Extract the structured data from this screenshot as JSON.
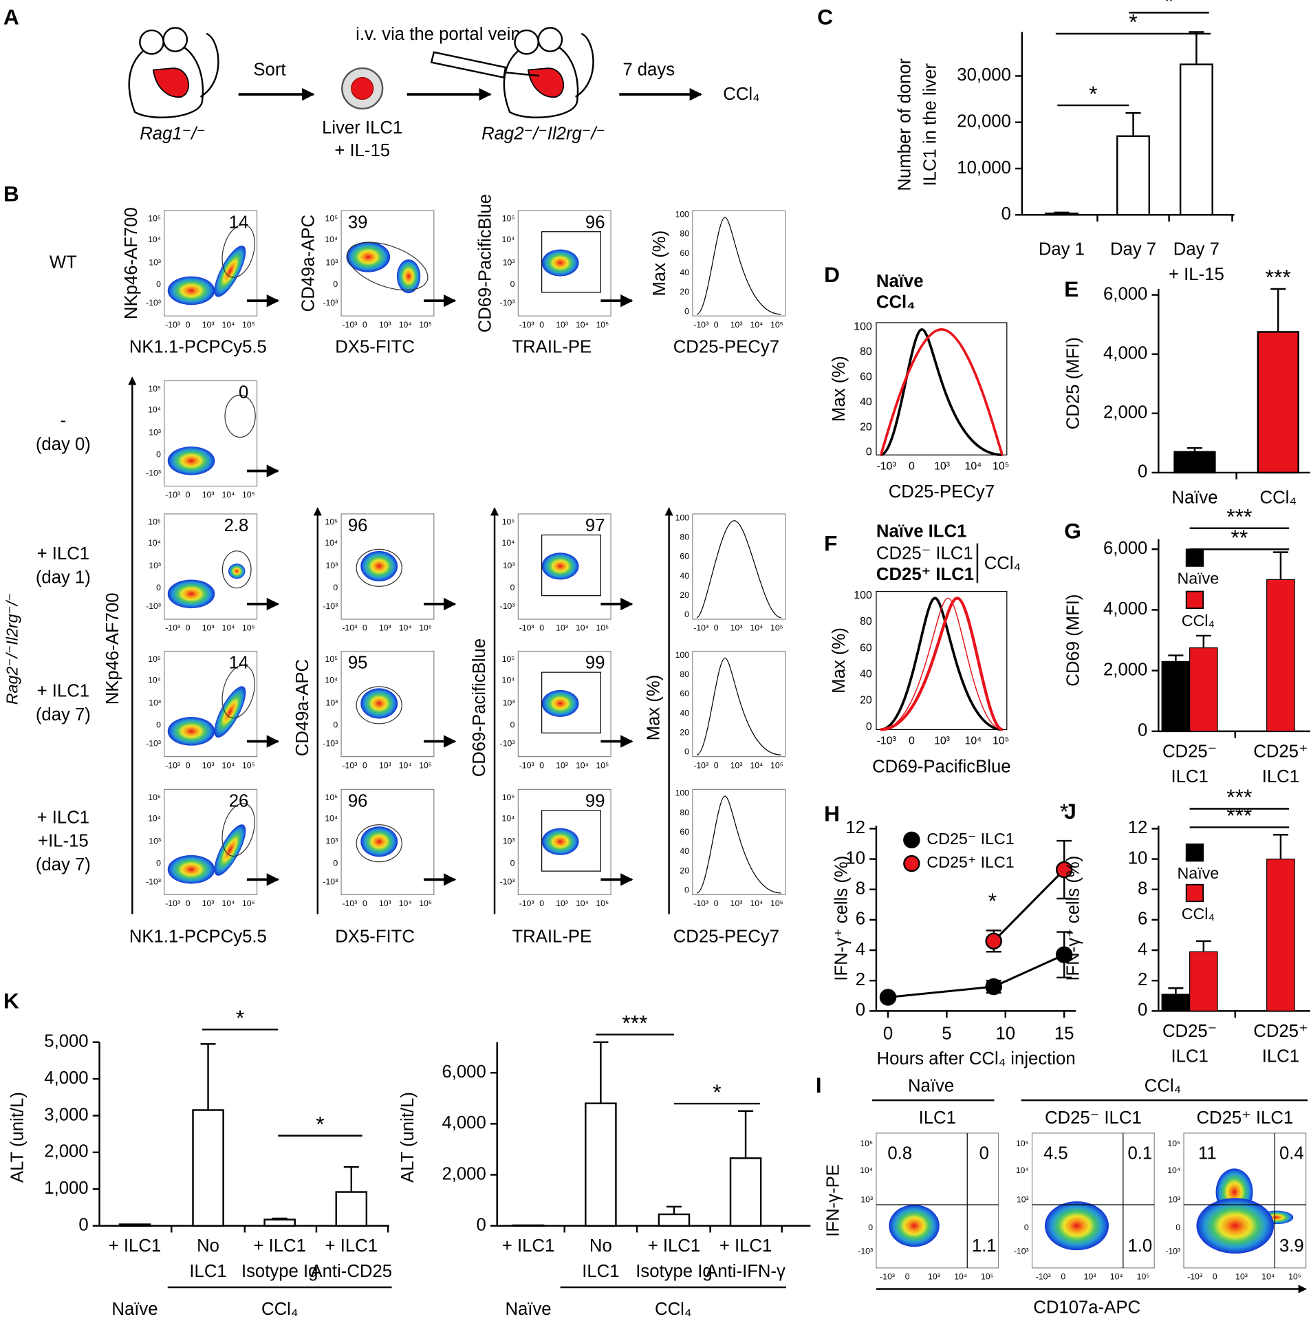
{
  "schematic": {
    "panel": "A",
    "donor": "Rag1⁻/⁻",
    "sort": "Sort",
    "cells": [
      "Liver ILC1",
      "+ IL-15"
    ],
    "route": "i.v. via the portal vein",
    "recipient": "Rag2⁻/⁻Il2rg⁻/⁻",
    "time": "7 days",
    "treatment": "CCl₄"
  },
  "flow_b": {
    "panel": "B",
    "group": "Rag2⁻/⁻Il2rg⁻/⁻",
    "y_labels": [
      "NKp46-AF700",
      "CD49a-APC",
      "CD69-PacificBlue",
      "Max (%)"
    ],
    "x_labels": [
      "NK1.1-PCPCy5.5",
      "DX5-FITC",
      "TRAIL-PE",
      "CD25-PECy7"
    ],
    "rows": [
      {
        "label": [
          "WT"
        ],
        "gates": [
          "14",
          "39",
          "96"
        ]
      },
      {
        "label": [
          "-",
          "(day 0)"
        ],
        "gates": [
          "0"
        ]
      },
      {
        "label": [
          "+ ILC1",
          "(day 1)"
        ],
        "gates": [
          "2.8",
          "96",
          "97"
        ]
      },
      {
        "label": [
          "+ ILC1",
          "(day 7)"
        ],
        "gates": [
          "14",
          "95",
          "99"
        ]
      },
      {
        "label": [
          "+ ILC1",
          "+IL-15",
          "(day 7)"
        ],
        "gates": [
          "26",
          "96",
          "99"
        ]
      }
    ],
    "log_ticks_y": [
      "10⁵",
      "10⁴",
      "10³",
      "0",
      "-10³"
    ],
    "log_ticks_x": [
      "-10³",
      "0",
      "10³",
      "10⁴",
      "10⁵"
    ],
    "max_ticks": [
      "100",
      "80",
      "60",
      "40",
      "20",
      "0"
    ]
  },
  "hist_d": {
    "panel": "D",
    "legend": [
      "Naïve",
      "CCl₄"
    ],
    "xlabel": "CD25-PECy7",
    "ylabel": "Max (%)"
  },
  "hist_f": {
    "panel": "F",
    "legend": [
      "Naïve ILC1",
      "CD25⁻ ILC1",
      "CD25⁺ ILC1"
    ],
    "bracket": "CCl₄",
    "xlabel": "CD69-PacificBlue",
    "ylabel": "Max (%)"
  },
  "flow_i": {
    "panel": "I",
    "groups": [
      "Naïve",
      "CCl₄"
    ],
    "titles": [
      "ILC1",
      "CD25⁻ ILC1",
      "CD25⁺ ILC1"
    ],
    "quadrants": [
      [
        "0.8",
        "0",
        "1.1"
      ],
      [
        "4.5",
        "0.1",
        "1.0"
      ],
      [
        "11",
        "0.4",
        "3.9"
      ]
    ],
    "ylabel": "IFN-γ-PE",
    "xlabel": "CD107a-APC"
  },
  "chart_data": [
    {
      "type": "bar",
      "panel": "C",
      "ylabel": [
        "Number of donor",
        "ILC1 in the liver"
      ],
      "categories": [
        [
          "Day 1"
        ],
        [
          "Day 7"
        ],
        [
          "Day 7",
          "+ IL-15"
        ]
      ],
      "values": [
        300,
        17000,
        32500
      ],
      "errors": [
        200,
        5000,
        7000
      ],
      "color": "#ffffff",
      "ylim": [
        0,
        39500
      ],
      "yticks": [
        0,
        {
          "value": 10000,
          "label": "10,000"
        },
        {
          "value": 20000,
          "label": "20,000"
        },
        {
          "value": 30000,
          "label": "30,000"
        }
      ],
      "annotations": [
        "*",
        "*",
        "*"
      ]
    },
    {
      "type": "bar",
      "panel": "E",
      "ylabel": [
        "CD25 (MFI)"
      ],
      "categories": [
        [
          "Naïve"
        ],
        [
          "CCl₄"
        ]
      ],
      "values": [
        700,
        4750
      ],
      "errors": [
        130,
        1450
      ],
      "colors": [
        "#000000",
        "#e8141c"
      ],
      "ylim": [
        0,
        6200
      ],
      "yticks": [
        0,
        {
          "value": 2000,
          "label": "2,000"
        },
        {
          "value": 4000,
          "label": "4,000"
        },
        {
          "value": 6000,
          "label": "6,000"
        }
      ],
      "annotations": [
        "***"
      ]
    },
    {
      "type": "grouped_bar",
      "panel": "G",
      "ylabel": [
        "CD69 (MFI)"
      ],
      "categories": [
        [
          "CD25⁻",
          "ILC1"
        ],
        [
          "CD25⁺",
          "ILC1"
        ]
      ],
      "series": [
        {
          "name": "Naïve",
          "color": "#000000",
          "values": [
            2300,
            null
          ],
          "errors": [
            200,
            null
          ]
        },
        {
          "name": "CCl₄",
          "color": "#e8141c",
          "values": [
            2750,
            5000
          ],
          "errors": [
            400,
            900
          ]
        }
      ],
      "ylim": [
        0,
        6330
      ],
      "yticks": [
        0,
        {
          "value": 2000,
          "label": "2,000"
        },
        {
          "value": 4000,
          "label": "4,000"
        },
        {
          "value": 6000,
          "label": "6,000"
        }
      ],
      "annotations": [
        "***",
        "**"
      ]
    },
    {
      "type": "line",
      "panel": "H",
      "xlabel": "Hours after CCl₄ injection",
      "ylabel": [
        "IFN-γ⁺ cells (%)"
      ],
      "x": [
        0,
        9,
        15
      ],
      "series": [
        {
          "name": "CD25⁻ ILC1",
          "color": "#000000",
          "values": [
            0.9,
            1.6,
            3.7
          ],
          "errors": [
            0.2,
            0.4,
            1.5
          ]
        },
        {
          "name": "CD25⁺ ILC1",
          "color": "#e8141c",
          "values": [
            null,
            4.6,
            9.3
          ],
          "errors": [
            null,
            0.7,
            1.9
          ]
        }
      ],
      "xlim": [
        -1,
        16
      ],
      "xticks": [
        0,
        5,
        10,
        15
      ],
      "ylim": [
        0,
        12.2
      ],
      "yticks": [
        0,
        2,
        4,
        6,
        8,
        10,
        12
      ],
      "annotations": [
        "*",
        "*"
      ]
    },
    {
      "type": "grouped_bar",
      "panel": "J",
      "ylabel": [
        "IFN-γ⁺ cells (%)"
      ],
      "categories": [
        [
          "CD25⁻",
          "ILC1"
        ],
        [
          "CD25⁺",
          "ILC1"
        ]
      ],
      "series": [
        {
          "name": "Naïve",
          "color": "#000000",
          "values": [
            1.1,
            null
          ],
          "errors": [
            0.4,
            null
          ]
        },
        {
          "name": "CCl₄",
          "color": "#e8141c",
          "values": [
            3.9,
            10
          ],
          "errors": [
            0.7,
            1.6
          ]
        }
      ],
      "ylim": [
        0,
        12.2
      ],
      "yticks": [
        0,
        2,
        4,
        6,
        8,
        10,
        12
      ],
      "annotations": [
        "***",
        "***"
      ]
    },
    {
      "type": "bar",
      "panel": "K",
      "ylabel": [
        "ALT (unit/L)"
      ],
      "categories": [
        [
          "+ ILC1"
        ],
        [
          "No",
          "ILC1"
        ],
        [
          "+ ILC1",
          "Isotype Ig"
        ],
        [
          "+ ILC1",
          "Anti-CD25"
        ]
      ],
      "groups": [
        "Naïve",
        "CCl₄"
      ],
      "values": [
        40,
        3150,
        170,
        920
      ],
      "errors": [
        null,
        1800,
        30,
        680
      ],
      "color": "#ffffff",
      "ylim": [
        0,
        5000
      ],
      "yticks": [
        0,
        {
          "value": 1000,
          "label": "1,000"
        },
        {
          "value": 2000,
          "label": "2,000"
        },
        {
          "value": 3000,
          "label": "3,000"
        },
        {
          "value": 4000,
          "label": "4,000"
        },
        {
          "value": 5000,
          "label": "5,000"
        }
      ],
      "annotations": [
        "*",
        "*"
      ]
    },
    {
      "type": "bar",
      "ylabel": [
        "ALT (unit/L)"
      ],
      "categories": [
        [
          "+ ILC1"
        ],
        [
          "No",
          "ILC1"
        ],
        [
          "+ ILC1",
          "Isotype Ig"
        ],
        [
          "+ ILC1",
          "Anti-IFN-γ"
        ]
      ],
      "groups": [
        "Naïve",
        "CCl₄"
      ],
      "values": [
        20,
        4800,
        450,
        2650
      ],
      "errors": [
        null,
        2400,
        300,
        1850
      ],
      "color": "#ffffff",
      "ylim": [
        0,
        7200
      ],
      "yticks": [
        0,
        {
          "value": 2000,
          "label": "2,000"
        },
        {
          "value": 4000,
          "label": "4,000"
        },
        {
          "value": 6000,
          "label": "6,000"
        }
      ],
      "annotations": [
        "***",
        "*"
      ]
    }
  ]
}
